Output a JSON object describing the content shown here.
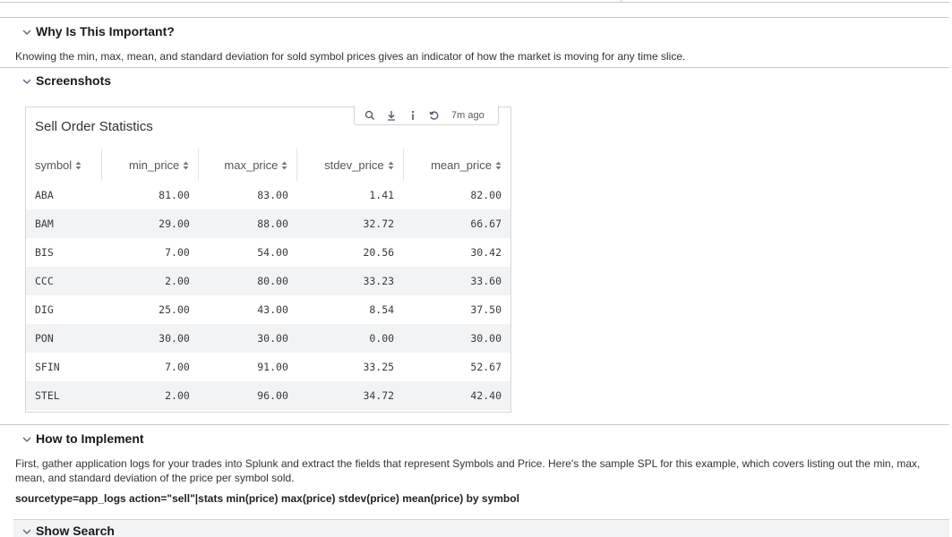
{
  "sections": {
    "why": {
      "title": "Why Is This Important?",
      "body": "Knowing the min, max, mean, and standard deviation for sold symbol prices gives an indicator of how the market is moving for any time slice."
    },
    "screenshots": {
      "title": "Screenshots"
    },
    "how": {
      "title": "How to Implement",
      "body": "First, gather application logs for your trades into Splunk and extract the fields that represent Symbols and Price. Here's the sample SPL for this example, which covers listing out the min, max, mean, and standard deviation of the price per symbol sold.",
      "spl": "sourcetype=app_logs action=\"sell\"|stats min(price) max(price) stdev(price) mean(price) by symbol"
    },
    "show_search": {
      "title": "Show Search"
    }
  },
  "panel": {
    "title": "Sell Order Statistics",
    "time_ago": "7m ago",
    "icons": [
      "search-icon",
      "export-icon",
      "info-icon",
      "refresh-icon"
    ],
    "columns": [
      "symbol",
      "min_price",
      "max_price",
      "stdev_price",
      "mean_price"
    ],
    "rows": [
      [
        "ABA",
        "81.00",
        "83.00",
        "1.41",
        "82.00"
      ],
      [
        "BAM",
        "29.00",
        "88.00",
        "32.72",
        "66.67"
      ],
      [
        "BIS",
        "7.00",
        "54.00",
        "20.56",
        "30.42"
      ],
      [
        "CCC",
        "2.00",
        "80.00",
        "33.23",
        "33.60"
      ],
      [
        "DIG",
        "25.00",
        "43.00",
        "8.54",
        "37.50"
      ],
      [
        "PON",
        "30.00",
        "30.00",
        "0.00",
        "30.00"
      ],
      [
        "SFIN",
        "7.00",
        "91.00",
        "33.25",
        "52.67"
      ],
      [
        "STEL",
        "2.00",
        "96.00",
        "34.72",
        "42.40"
      ]
    ]
  },
  "colors": {
    "divider": "#c8c8c8",
    "row_stripe": "#f2f3f5",
    "panel_border": "#d6d6d6"
  }
}
